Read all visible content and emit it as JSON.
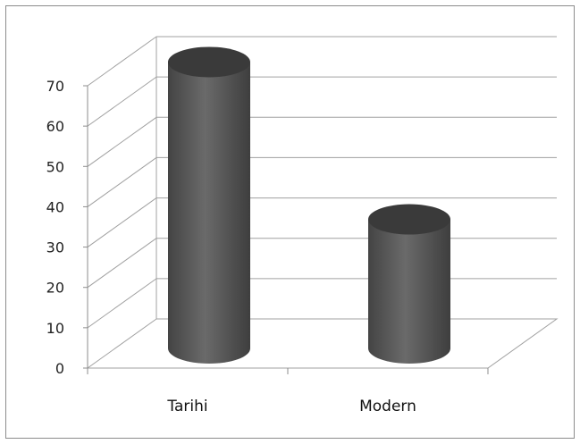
{
  "chart_data": {
    "type": "bar",
    "style": "3d-cylinder",
    "categories": [
      "Tarihi",
      "Modern"
    ],
    "values": [
      71,
      32
    ],
    "ylim": [
      0,
      70
    ],
    "yticks": [
      "0",
      "10",
      "20",
      "30",
      "40",
      "50",
      "60",
      "70"
    ],
    "grid": true,
    "legend": "none",
    "colors": {
      "bar": "#5a5a5a",
      "bar_top": "#3a3a3a",
      "grid": "#a0a0a0",
      "frame": "#8c8c8c"
    }
  }
}
